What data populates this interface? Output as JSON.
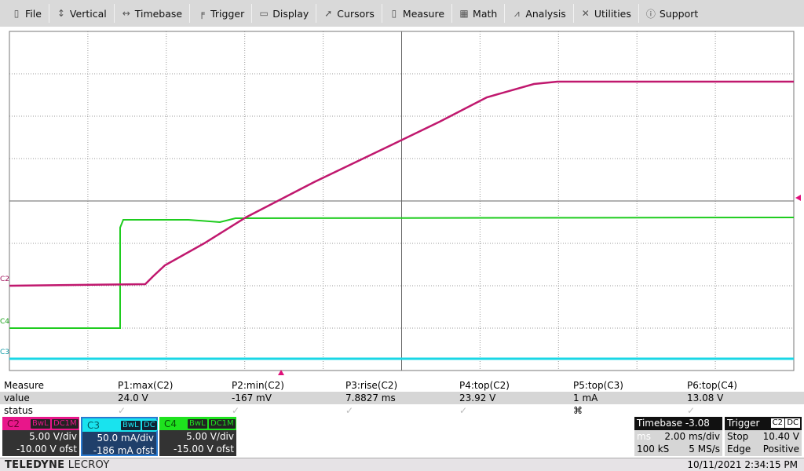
{
  "menu": [
    {
      "label": "File",
      "icon": "clipboard-icon"
    },
    {
      "label": "Vertical",
      "icon": "vertical-arrows-icon"
    },
    {
      "label": "Timebase",
      "icon": "horizontal-arrows-icon"
    },
    {
      "label": "Trigger",
      "icon": "trigger-flag-icon"
    },
    {
      "label": "Display",
      "icon": "display-icon"
    },
    {
      "label": "Cursors",
      "icon": "cursor-icon"
    },
    {
      "label": "Measure",
      "icon": "measure-icon"
    },
    {
      "label": "Math",
      "icon": "calculator-icon"
    },
    {
      "label": "Analysis",
      "icon": "chart-icon"
    },
    {
      "label": "Utilities",
      "icon": "tools-icon"
    },
    {
      "label": "Support",
      "icon": "info-icon"
    }
  ],
  "traces": {
    "c2_label": "C2",
    "c3_label": "C3",
    "c4_label": "C4"
  },
  "measure": {
    "header": "Measure",
    "value_label": "value",
    "status_label": "status",
    "params": [
      {
        "name": "P1:max(C2)",
        "value": "24.0 V",
        "status": "✓"
      },
      {
        "name": "P2:min(C2)",
        "value": "-167 mV",
        "status": "✓"
      },
      {
        "name": "P3:rise(C2)",
        "value": "7.8827 ms",
        "status": "✓"
      },
      {
        "name": "P4:top(C2)",
        "value": "23.92 V",
        "status": "✓"
      },
      {
        "name": "P5:top(C3)",
        "value": "1 mA",
        "status": "⌘"
      },
      {
        "name": "P6:top(C4)",
        "value": "13.08 V",
        "status": "✓"
      }
    ]
  },
  "channels": [
    {
      "name": "C2",
      "bw": "BwL",
      "coupling": "DC1M",
      "scale": "5.00 V/div",
      "offset": "-10.00 V ofst",
      "color": "#e8168a"
    },
    {
      "name": "C3",
      "bw": "BwL",
      "coupling": "DC",
      "scale": "50.0 mA/div",
      "offset": "-186 mA ofst",
      "color": "#19e3ee"
    },
    {
      "name": "C4",
      "bw": "BwL",
      "coupling": "DC1M",
      "scale": "5.00 V/div",
      "offset": "-15.00 V ofst",
      "color": "#1ee21e"
    }
  ],
  "timebase": {
    "title": "Timebase",
    "delay": "-3.08 ms",
    "scale": "2.00 ms/div",
    "samples": "100 kS",
    "rate": "5 MS/s"
  },
  "trigger": {
    "title": "Trigger",
    "source": "C2",
    "coupling": "DC",
    "mode": "Stop",
    "level": "10.40 V",
    "type": "Edge",
    "slope": "Positive"
  },
  "footer": {
    "brand_bold": "TELEDYNE",
    "brand": "LECROY",
    "datetime": "10/11/2021 2:34:15 PM"
  }
}
